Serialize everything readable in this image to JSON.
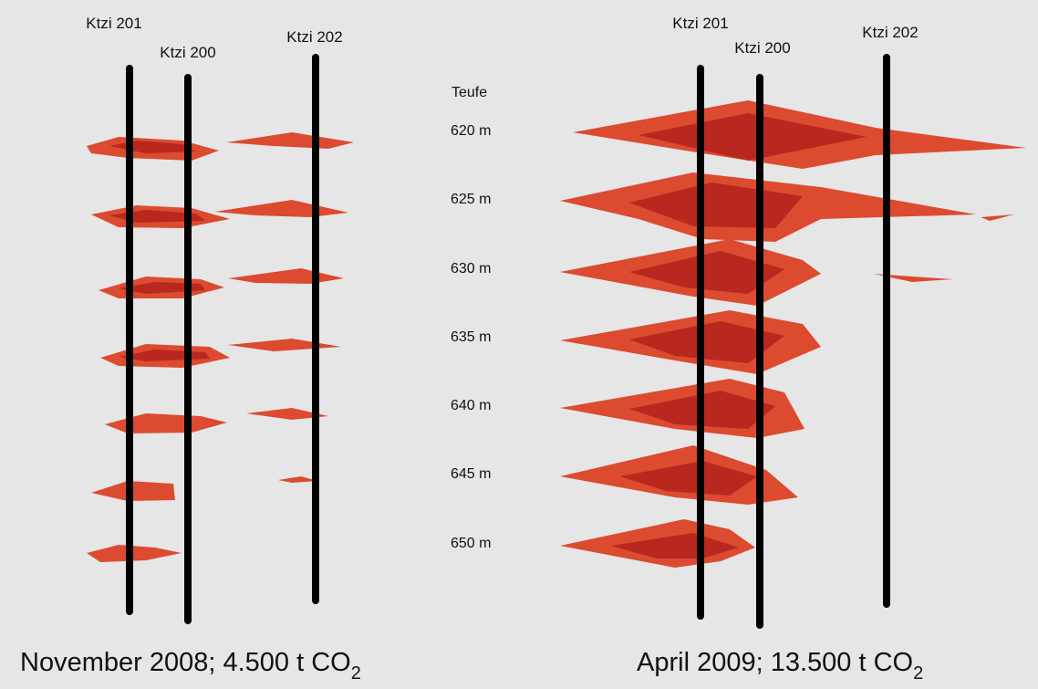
{
  "left_panel": {
    "wells": [
      "Ktzi 201",
      "Ktzi 200",
      "Ktzi 202"
    ],
    "caption": {
      "text": "November 2008; 4.500 t CO",
      "subscript": "2"
    }
  },
  "right_panel": {
    "wells": [
      "Ktzi 201",
      "Ktzi 200",
      "Ktzi 202"
    ],
    "depth_header": "Teufe",
    "depths": [
      "620 m",
      "625 m",
      "630 m",
      "635 m",
      "640 m",
      "645 m",
      "650 m"
    ],
    "caption": {
      "text": "April 2009; 13.500 t CO",
      "subscript": "2"
    }
  }
}
